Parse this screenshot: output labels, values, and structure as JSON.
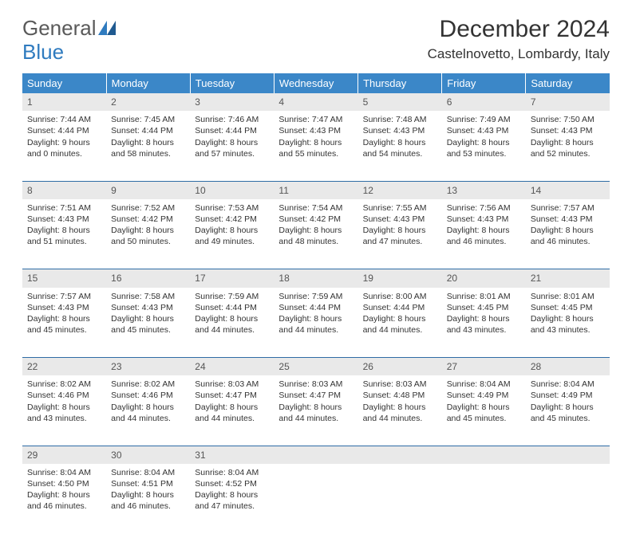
{
  "brand": {
    "part1": "General",
    "part2": "Blue"
  },
  "title": "December 2024",
  "location": "Castelnovetto, Lombardy, Italy",
  "colors": {
    "header_bg": "#3b87c8",
    "header_text": "#ffffff",
    "daynum_bg": "#e9e9e9",
    "rule": "#2e6ca5",
    "text": "#333333",
    "logo_gray": "#5a5a5a",
    "logo_blue": "#2f7bbf"
  },
  "day_headers": [
    "Sunday",
    "Monday",
    "Tuesday",
    "Wednesday",
    "Thursday",
    "Friday",
    "Saturday"
  ],
  "weeks": [
    {
      "nums": [
        "1",
        "2",
        "3",
        "4",
        "5",
        "6",
        "7"
      ],
      "cells": [
        {
          "sunrise": "7:44 AM",
          "sunset": "4:44 PM",
          "day_h": 9,
          "day_m": 0
        },
        {
          "sunrise": "7:45 AM",
          "sunset": "4:44 PM",
          "day_h": 8,
          "day_m": 58
        },
        {
          "sunrise": "7:46 AM",
          "sunset": "4:44 PM",
          "day_h": 8,
          "day_m": 57
        },
        {
          "sunrise": "7:47 AM",
          "sunset": "4:43 PM",
          "day_h": 8,
          "day_m": 55
        },
        {
          "sunrise": "7:48 AM",
          "sunset": "4:43 PM",
          "day_h": 8,
          "day_m": 54
        },
        {
          "sunrise": "7:49 AM",
          "sunset": "4:43 PM",
          "day_h": 8,
          "day_m": 53
        },
        {
          "sunrise": "7:50 AM",
          "sunset": "4:43 PM",
          "day_h": 8,
          "day_m": 52
        }
      ]
    },
    {
      "nums": [
        "8",
        "9",
        "10",
        "11",
        "12",
        "13",
        "14"
      ],
      "cells": [
        {
          "sunrise": "7:51 AM",
          "sunset": "4:43 PM",
          "day_h": 8,
          "day_m": 51
        },
        {
          "sunrise": "7:52 AM",
          "sunset": "4:42 PM",
          "day_h": 8,
          "day_m": 50
        },
        {
          "sunrise": "7:53 AM",
          "sunset": "4:42 PM",
          "day_h": 8,
          "day_m": 49
        },
        {
          "sunrise": "7:54 AM",
          "sunset": "4:42 PM",
          "day_h": 8,
          "day_m": 48
        },
        {
          "sunrise": "7:55 AM",
          "sunset": "4:43 PM",
          "day_h": 8,
          "day_m": 47
        },
        {
          "sunrise": "7:56 AM",
          "sunset": "4:43 PM",
          "day_h": 8,
          "day_m": 46
        },
        {
          "sunrise": "7:57 AM",
          "sunset": "4:43 PM",
          "day_h": 8,
          "day_m": 46
        }
      ]
    },
    {
      "nums": [
        "15",
        "16",
        "17",
        "18",
        "19",
        "20",
        "21"
      ],
      "cells": [
        {
          "sunrise": "7:57 AM",
          "sunset": "4:43 PM",
          "day_h": 8,
          "day_m": 45
        },
        {
          "sunrise": "7:58 AM",
          "sunset": "4:43 PM",
          "day_h": 8,
          "day_m": 45
        },
        {
          "sunrise": "7:59 AM",
          "sunset": "4:44 PM",
          "day_h": 8,
          "day_m": 44
        },
        {
          "sunrise": "7:59 AM",
          "sunset": "4:44 PM",
          "day_h": 8,
          "day_m": 44
        },
        {
          "sunrise": "8:00 AM",
          "sunset": "4:44 PM",
          "day_h": 8,
          "day_m": 44
        },
        {
          "sunrise": "8:01 AM",
          "sunset": "4:45 PM",
          "day_h": 8,
          "day_m": 43
        },
        {
          "sunrise": "8:01 AM",
          "sunset": "4:45 PM",
          "day_h": 8,
          "day_m": 43
        }
      ]
    },
    {
      "nums": [
        "22",
        "23",
        "24",
        "25",
        "26",
        "27",
        "28"
      ],
      "cells": [
        {
          "sunrise": "8:02 AM",
          "sunset": "4:46 PM",
          "day_h": 8,
          "day_m": 43
        },
        {
          "sunrise": "8:02 AM",
          "sunset": "4:46 PM",
          "day_h": 8,
          "day_m": 44
        },
        {
          "sunrise": "8:03 AM",
          "sunset": "4:47 PM",
          "day_h": 8,
          "day_m": 44
        },
        {
          "sunrise": "8:03 AM",
          "sunset": "4:47 PM",
          "day_h": 8,
          "day_m": 44
        },
        {
          "sunrise": "8:03 AM",
          "sunset": "4:48 PM",
          "day_h": 8,
          "day_m": 44
        },
        {
          "sunrise": "8:04 AM",
          "sunset": "4:49 PM",
          "day_h": 8,
          "day_m": 45
        },
        {
          "sunrise": "8:04 AM",
          "sunset": "4:49 PM",
          "day_h": 8,
          "day_m": 45
        }
      ]
    },
    {
      "nums": [
        "29",
        "30",
        "31",
        "",
        "",
        "",
        ""
      ],
      "cells": [
        {
          "sunrise": "8:04 AM",
          "sunset": "4:50 PM",
          "day_h": 8,
          "day_m": 46
        },
        {
          "sunrise": "8:04 AM",
          "sunset": "4:51 PM",
          "day_h": 8,
          "day_m": 46
        },
        {
          "sunrise": "8:04 AM",
          "sunset": "4:52 PM",
          "day_h": 8,
          "day_m": 47
        },
        null,
        null,
        null,
        null
      ]
    }
  ]
}
